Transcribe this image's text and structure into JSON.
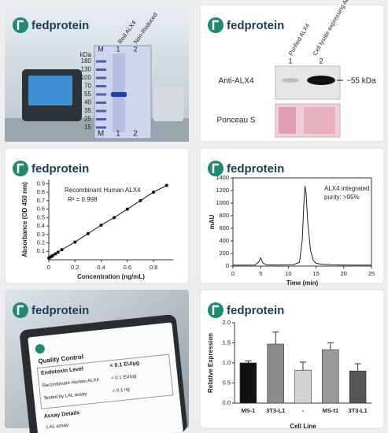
{
  "brand": "fedprotein",
  "gel": {
    "headers": [
      "Red ALX4",
      "Non-Reduced"
    ],
    "lanes": [
      "M",
      "1",
      "2"
    ],
    "unit": "kDa",
    "markers": [
      180,
      130,
      100,
      70,
      55,
      40,
      35,
      25,
      15
    ]
  },
  "blot": {
    "headers": [
      "Purified ALX4",
      "Cell lysate expressing ALX4"
    ],
    "lanes": [
      "1",
      "2"
    ],
    "antibody": "Anti-ALX4",
    "size": "~55 kDa",
    "stain": "Ponceau S"
  },
  "report": {
    "title": "Quality Control",
    "rows": [
      [
        "Endotoxin Level",
        "< 0.1 EU/µg"
      ],
      [
        "Recombinant Human ALX4",
        "< 0.1 EU/µg"
      ],
      [
        "Tested by LAL assay",
        "< 0.1 ng"
      ]
    ],
    "section": "Assay Details",
    "footer": "LAL assay"
  },
  "chart_data": [
    {
      "type": "scatter",
      "title": "Recombinant Human ALX4",
      "subtitle": "R² = 0.998",
      "x_label": "Concentration (ng/mL)",
      "y_label": "Absorbance (OD 450 nm)",
      "x": [
        0,
        0.01,
        0.02,
        0.03,
        0.05,
        0.07,
        0.1,
        0.2,
        0.3,
        0.4,
        0.5,
        0.6,
        0.7,
        0.8,
        0.9
      ],
      "values": [
        0.02,
        0.03,
        0.04,
        0.05,
        0.07,
        0.09,
        0.12,
        0.21,
        0.31,
        0.41,
        0.5,
        0.6,
        0.7,
        0.8,
        0.88
      ],
      "color": "#111111",
      "xlim": [
        0,
        0.95
      ],
      "xticks": [
        0,
        0.2,
        0.4,
        0.6,
        0.8
      ],
      "ylim": [
        0,
        0.95
      ],
      "yticks": [
        0.1,
        0.2,
        0.3,
        0.4,
        0.5,
        0.6,
        0.7,
        0.8,
        0.9
      ]
    },
    {
      "type": "line",
      "annotation": [
        "ALX4 integrated",
        "purity: >95%"
      ],
      "x_label": "Time (min)",
      "y_label": "mAU",
      "x": [
        0,
        2,
        4,
        4.6,
        5,
        5.4,
        6,
        8,
        10,
        11,
        12,
        12.5,
        12.8,
        13,
        13.2,
        13.5,
        14,
        14.5,
        15,
        16,
        18,
        20,
        22,
        25
      ],
      "values": [
        15,
        15,
        17,
        60,
        130,
        50,
        20,
        17,
        20,
        24,
        60,
        400,
        1000,
        1270,
        1150,
        700,
        250,
        90,
        45,
        28,
        20,
        17,
        15,
        15
      ],
      "color": "#222222",
      "xlim": [
        0,
        25
      ],
      "xticks": [
        0,
        5,
        10,
        15,
        20,
        25
      ],
      "ylim": [
        0,
        1400
      ],
      "yticks": [
        0,
        200,
        400,
        600,
        800,
        1000,
        1200,
        1400
      ]
    },
    {
      "type": "bar",
      "x_label": "Cell Line",
      "y_label": "Relative Expression",
      "categories": [
        "MS-1",
        "3T3-L1",
        "-",
        "MS-t1",
        "3T3-L1"
      ],
      "values": [
        1.0,
        1.47,
        0.82,
        1.33,
        0.8
      ],
      "errors": [
        0.05,
        0.3,
        0.2,
        0.17,
        0.18
      ],
      "colors": [
        "#111111",
        "#8c8c8c",
        "#d4d4d4",
        "#9a9a9a",
        "#555555"
      ],
      "ylim": [
        0,
        2.0
      ],
      "yticks": [
        {
          "value": 0,
          "label": "0.0"
        },
        {
          "value": 0.5,
          "label": "0.5"
        },
        {
          "value": 1.0,
          "label": "1.0"
        },
        {
          "value": 1.5,
          "label": "1.5"
        },
        {
          "value": 2.0,
          "label": "2.0"
        }
      ]
    }
  ]
}
